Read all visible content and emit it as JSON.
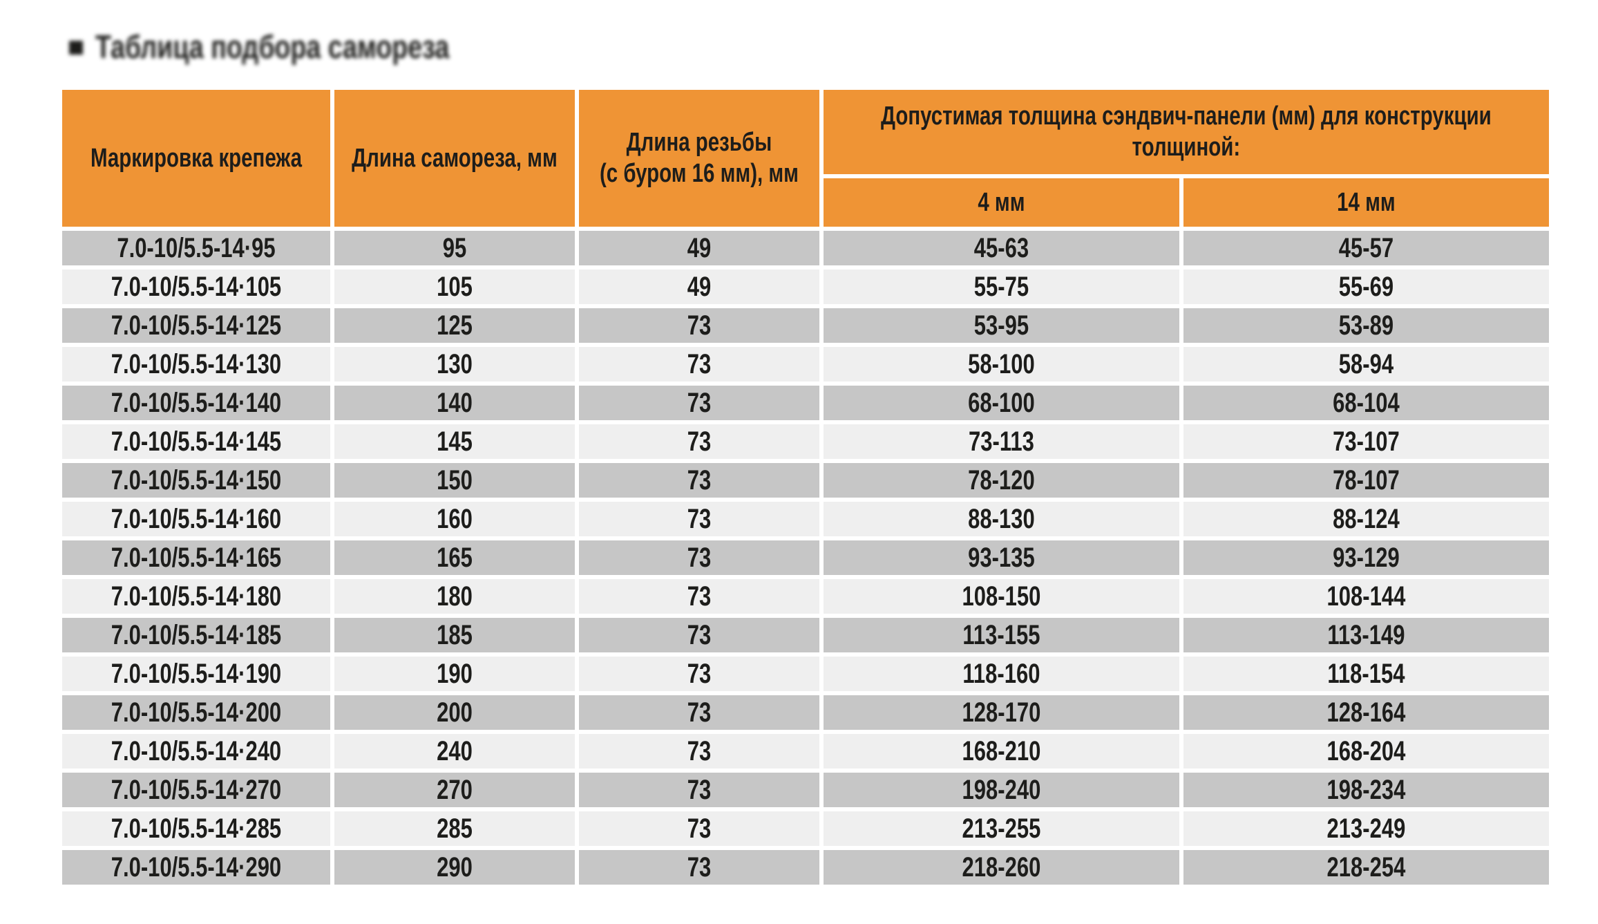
{
  "title": {
    "bullet": "■",
    "text": "Таблица подбора самореза"
  },
  "table": {
    "headers": {
      "col1": "Маркировка крепежа",
      "col2": "Длина самореза, мм",
      "col3": "Длина резьбы\n(с буром 16 мм), мм",
      "group": "Допустимая толщина сэндвич-панели (мм) для конструкции\nтолщиной:",
      "sub1": "4 мм",
      "sub2": "14 мм"
    },
    "rows": [
      [
        "7.0-10/5.5-14·95",
        "95",
        "49",
        "45-63",
        "45-57"
      ],
      [
        "7.0-10/5.5-14·105",
        "105",
        "49",
        "55-75",
        "55-69"
      ],
      [
        "7.0-10/5.5-14·125",
        "125",
        "73",
        "53-95",
        "53-89"
      ],
      [
        "7.0-10/5.5-14·130",
        "130",
        "73",
        "58-100",
        "58-94"
      ],
      [
        "7.0-10/5.5-14·140",
        "140",
        "73",
        "68-100",
        "68-104"
      ],
      [
        "7.0-10/5.5-14·145",
        "145",
        "73",
        "73-113",
        "73-107"
      ],
      [
        "7.0-10/5.5-14·150",
        "150",
        "73",
        "78-120",
        "78-107"
      ],
      [
        "7.0-10/5.5-14·160",
        "160",
        "73",
        "88-130",
        "88-124"
      ],
      [
        "7.0-10/5.5-14·165",
        "165",
        "73",
        "93-135",
        "93-129"
      ],
      [
        "7.0-10/5.5-14·180",
        "180",
        "73",
        "108-150",
        "108-144"
      ],
      [
        "7.0-10/5.5-14·185",
        "185",
        "73",
        "113-155",
        "113-149"
      ],
      [
        "7.0-10/5.5-14·190",
        "190",
        "73",
        "118-160",
        "118-154"
      ],
      [
        "7.0-10/5.5-14·200",
        "200",
        "73",
        "128-170",
        "128-164"
      ],
      [
        "7.0-10/5.5-14·240",
        "240",
        "73",
        "168-210",
        "168-204"
      ],
      [
        "7.0-10/5.5-14·270",
        "270",
        "73",
        "198-240",
        "198-234"
      ],
      [
        "7.0-10/5.5-14·285",
        "285",
        "73",
        "213-255",
        "213-249"
      ],
      [
        "7.0-10/5.5-14·290",
        "290",
        "73",
        "218-260",
        "218-254"
      ]
    ]
  },
  "colors": {
    "header_orange": "#EF9435",
    "row_gray": "#C6C6C6",
    "row_light": "#EFEFEF",
    "text": "#1D1D1B",
    "background": "#FFFFFF"
  }
}
